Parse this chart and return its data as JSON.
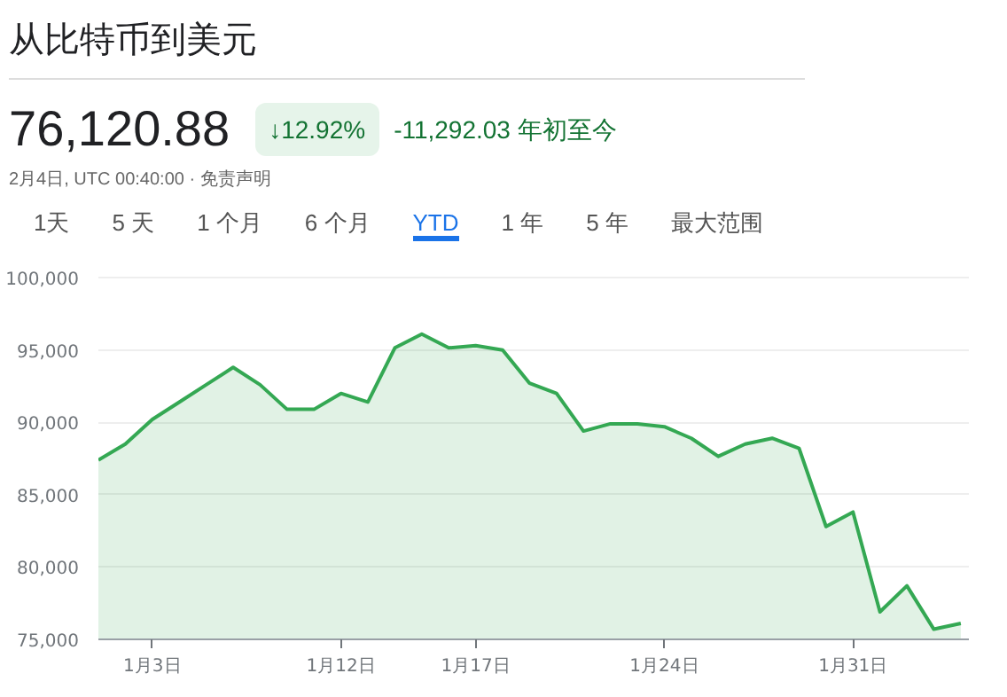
{
  "chart_data": {
    "type": "area",
    "title": "从比特币到美元",
    "annotations": [
      "76,120.88",
      "↓12.92%",
      "-11,292.03 年初至今",
      "2月4日, UTC 00:40:00 · 免责声明",
      "1天",
      "5 天",
      "1 个月",
      "6 个月",
      "YTD",
      "1 年",
      "5 年",
      "最大范围"
    ],
    "categories": [
      null,
      null,
      "1月3日",
      null,
      null,
      null,
      null,
      null,
      null,
      "1月12日",
      null,
      null,
      null,
      null,
      "1月17日",
      null,
      null,
      null,
      null,
      null,
      null,
      "1月24日",
      null,
      null,
      null,
      null,
      null,
      null,
      "1月31日",
      null,
      null,
      null,
      null
    ],
    "series": [
      {
        "color": "#34a853",
        "values": [
          87400,
          88500,
          90200,
          91400,
          92600,
          93800,
          92600,
          90900,
          90900,
          92000,
          91400,
          95150,
          96100,
          95150,
          95300,
          95000,
          92700,
          92000,
          89400,
          89900,
          89900,
          89700,
          88900,
          87650,
          88500,
          88900,
          88200,
          82800,
          83800,
          76900,
          78700,
          75700,
          76100
        ]
      }
    ],
    "ylim": [
      75000,
      100000
    ],
    "yticks": [
      {
        "value": 75000,
        "label": "75,000"
      },
      {
        "value": 80000,
        "label": "80,000"
      },
      {
        "value": 85000,
        "label": "85,000"
      },
      {
        "value": 90000,
        "label": "90,000"
      },
      {
        "value": 95000,
        "label": "95,000"
      },
      {
        "value": 100000,
        "label": "100,000"
      }
    ],
    "grid": "y",
    "marker": "none",
    "line_style": "solid"
  }
}
